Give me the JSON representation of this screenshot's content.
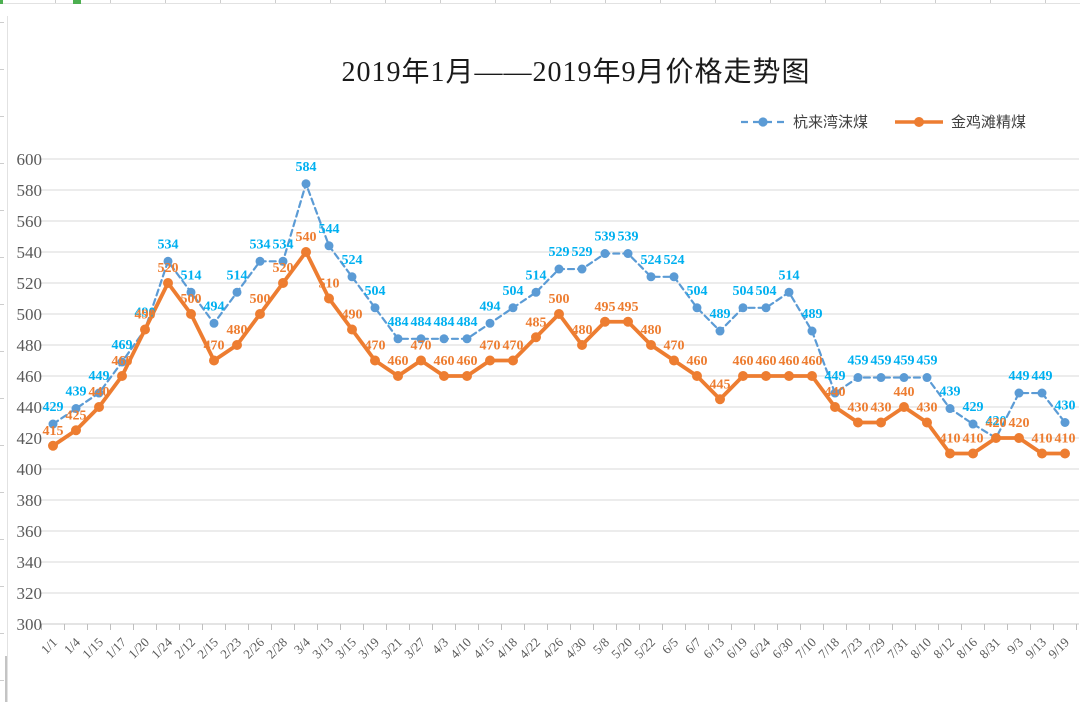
{
  "title": "2019年1月——2019年9月价格走势图",
  "legend": {
    "items": [
      {
        "label": "杭来湾沫煤"
      },
      {
        "label": "金鸡滩精煤"
      }
    ]
  },
  "chart_data": {
    "type": "line",
    "title": "2019年1月——2019年9月价格走势图",
    "categories": [
      "1/1",
      "1/4",
      "1/15",
      "1/17",
      "1/20",
      "1/24",
      "2/12",
      "2/15",
      "2/23",
      "2/26",
      "2/28",
      "3/4",
      "3/13",
      "3/15",
      "3/19",
      "3/21",
      "3/27",
      "4/3",
      "4/10",
      "4/15",
      "4/18",
      "4/22",
      "4/26",
      "4/30",
      "5/8",
      "5/20",
      "5/22",
      "6/5",
      "6/7",
      "6/13",
      "6/19",
      "6/24",
      "6/30",
      "7/10",
      "7/18",
      "7/23",
      "7/29",
      "7/31",
      "8/10",
      "8/12",
      "8/16",
      "8/31",
      "9/3",
      "9/13",
      "9/19"
    ],
    "series": [
      {
        "name": "杭来湾沫煤",
        "values": [
          429,
          439,
          449,
          469,
          490,
          534,
          514,
          494,
          514,
          534,
          534,
          584,
          544,
          524,
          504,
          484,
          484,
          484,
          484,
          494,
          504,
          514,
          529,
          529,
          539,
          539,
          524,
          524,
          504,
          489,
          504,
          504,
          514,
          489,
          449,
          459,
          459,
          459,
          459,
          439,
          429,
          420,
          449,
          449,
          430
        ],
        "line_color": "#5B9BD5",
        "label_color": "#00B0F0",
        "line_style": "dashed",
        "marker": "circle"
      },
      {
        "name": "金鸡滩精煤",
        "values": [
          415,
          425,
          440,
          460,
          490,
          520,
          500,
          470,
          480,
          500,
          520,
          540,
          510,
          490,
          470,
          460,
          470,
          460,
          460,
          470,
          470,
          485,
          500,
          480,
          495,
          495,
          480,
          470,
          460,
          445,
          460,
          460,
          460,
          460,
          440,
          430,
          430,
          440,
          430,
          410,
          410,
          420,
          420,
          410,
          410
        ],
        "line_color": "#ED7D31",
        "label_color": "#ED7D31",
        "line_style": "solid",
        "marker": "circle"
      }
    ],
    "ylim": [
      300,
      600
    ],
    "yticks": [
      300,
      320,
      340,
      360,
      380,
      400,
      420,
      440,
      460,
      480,
      500,
      520,
      540,
      560,
      580,
      600
    ],
    "xlabel": "",
    "ylabel": "",
    "grid": "horizontal",
    "gridline_color": "#D9D9D9",
    "axis_line_color": "#C9C9C9",
    "axis_label_color": "#595959",
    "legend_position": "top-right",
    "data_labels": true
  }
}
